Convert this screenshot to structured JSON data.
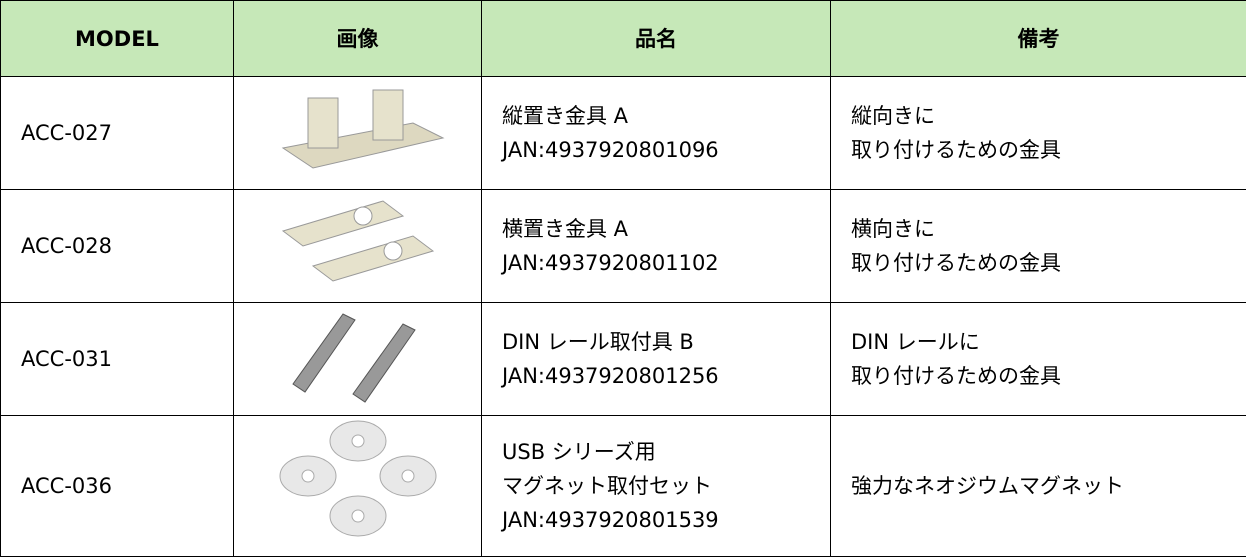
{
  "table": {
    "header": [
      "MODEL",
      "画像",
      "品名",
      "備考"
    ],
    "rows": [
      {
        "model": "ACC-027",
        "name": [
          "縦置き金具 A",
          "JAN:4937920801096"
        ],
        "note": [
          "縦向きに",
          "取り付けるための金具"
        ]
      },
      {
        "model": "ACC-028",
        "name": [
          "横置き金具 A",
          "JAN:4937920801102"
        ],
        "note": [
          "横向きに",
          "取り付けるための金具"
        ]
      },
      {
        "model": "ACC-031",
        "name": [
          "DIN レール取付具 B",
          "JAN:4937920801256"
        ],
        "note": [
          "DIN レールに",
          "取り付けるための金具"
        ]
      },
      {
        "model": "ACC-036",
        "name": [
          "USB シリーズ用",
          "マグネット取付セット",
          "JAN:4937920801539"
        ],
        "note": [
          "強力なネオジウムマグネット"
        ]
      }
    ]
  }
}
